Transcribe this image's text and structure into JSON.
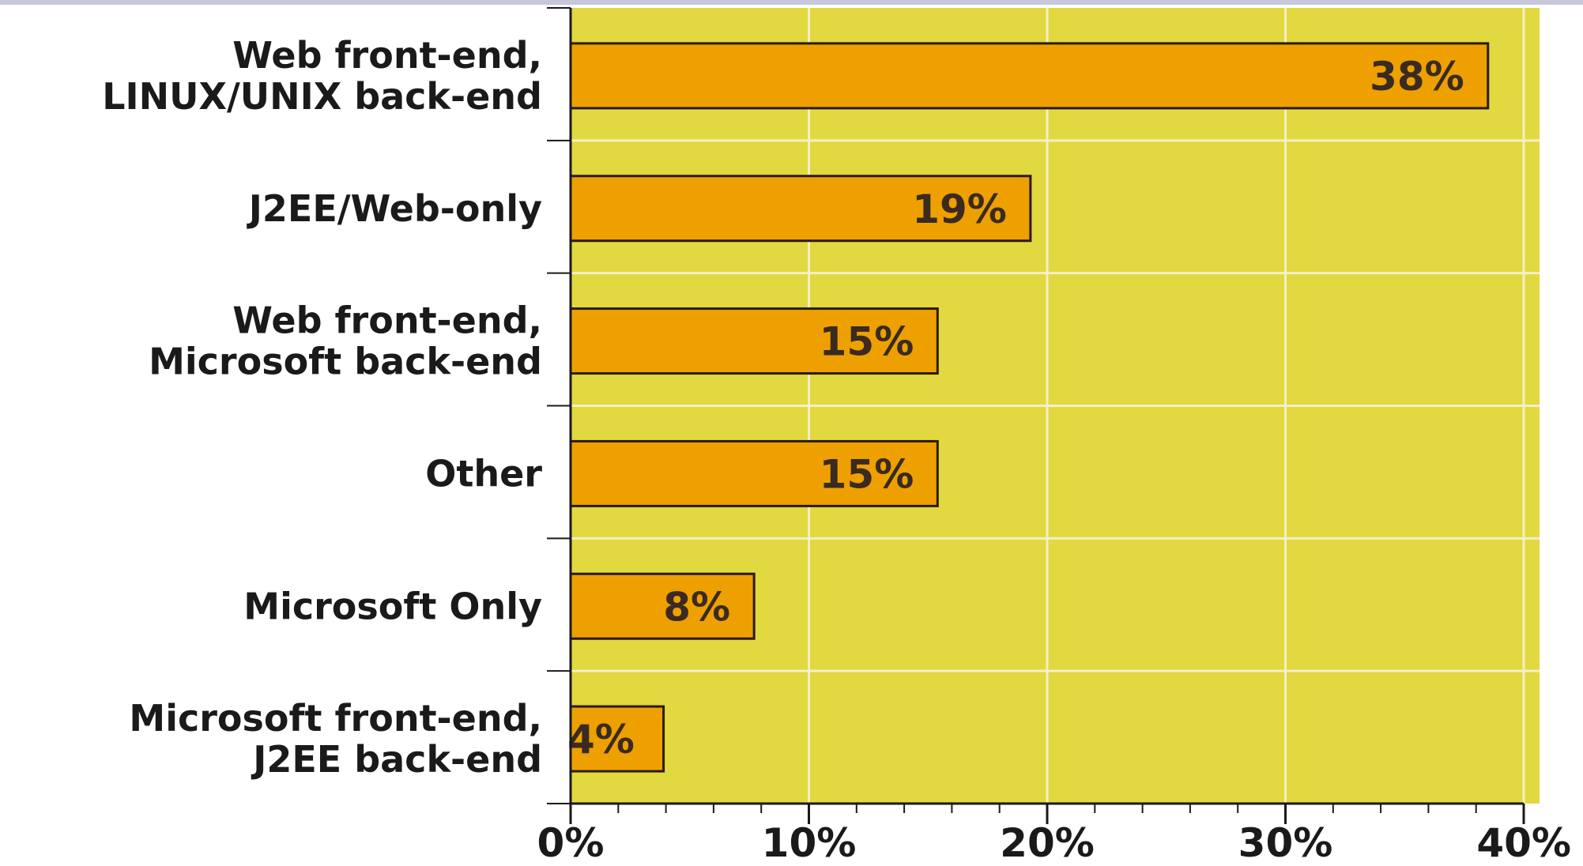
{
  "chart_data": {
    "type": "bar",
    "orientation": "horizontal",
    "categories": [
      [
        "Web front-end,",
        "LINUX/UNIX back-end"
      ],
      [
        "J2EE/Web-only"
      ],
      [
        "Web front-end,",
        "Microsoft back-end"
      ],
      [
        "Other"
      ],
      [
        "Microsoft Only"
      ],
      [
        "Microsoft front-end,",
        "J2EE back-end"
      ]
    ],
    "values": [
      38.5,
      19.3,
      15.4,
      15.4,
      7.7,
      3.9
    ],
    "value_labels": [
      "38%",
      "19%",
      "15%",
      "15%",
      "8%",
      "4%"
    ],
    "xlim": [
      0,
      40
    ],
    "xticks": [
      0,
      10,
      20,
      30,
      40
    ],
    "xtick_labels": [
      "0%",
      "10%",
      "20%",
      "30%",
      "40%"
    ],
    "grid": true,
    "colors": {
      "plot_background": "#e2d840",
      "bar_fill": "#eda000",
      "bar_stroke": "#2a1a10",
      "gridline": "#f4f0c8",
      "axis": "#1a1a1a"
    }
  }
}
